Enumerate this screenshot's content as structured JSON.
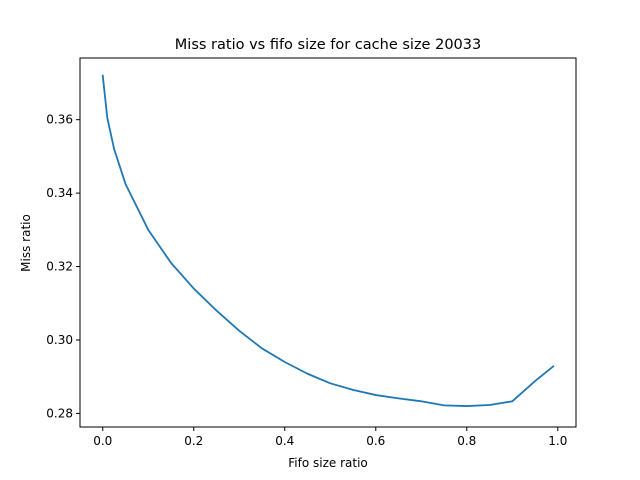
{
  "chart_data": {
    "type": "line",
    "title": "Miss ratio vs fifo size for cache size 20033",
    "xlabel": "Fifo size ratio",
    "ylabel": "Miss ratio",
    "xlim": [
      -0.05,
      1.04
    ],
    "ylim": [
      0.2763,
      0.3768
    ],
    "xticks": [
      0.0,
      0.2,
      0.4,
      0.6,
      0.8,
      1.0
    ],
    "xtick_labels": [
      "0.0",
      "0.2",
      "0.4",
      "0.6",
      "0.8",
      "1.0"
    ],
    "yticks": [
      0.28,
      0.3,
      0.32,
      0.34,
      0.36
    ],
    "ytick_labels": [
      "0.28",
      "0.30",
      "0.32",
      "0.34",
      "0.36"
    ],
    "grid": false,
    "series": [
      {
        "color": "#1f77b4",
        "x": [
          0.0,
          0.01,
          0.025,
          0.05,
          0.1,
          0.15,
          0.2,
          0.25,
          0.3,
          0.35,
          0.4,
          0.45,
          0.5,
          0.55,
          0.6,
          0.65,
          0.7,
          0.75,
          0.8,
          0.85,
          0.9,
          0.95,
          0.99
        ],
        "y": [
          0.372,
          0.3605,
          0.352,
          0.3425,
          0.33,
          0.321,
          0.314,
          0.308,
          0.3025,
          0.2977,
          0.294,
          0.2908,
          0.2882,
          0.2864,
          0.285,
          0.2841,
          0.2833,
          0.2822,
          0.282,
          0.2823,
          0.2833,
          0.2888,
          0.2928
        ]
      }
    ]
  }
}
